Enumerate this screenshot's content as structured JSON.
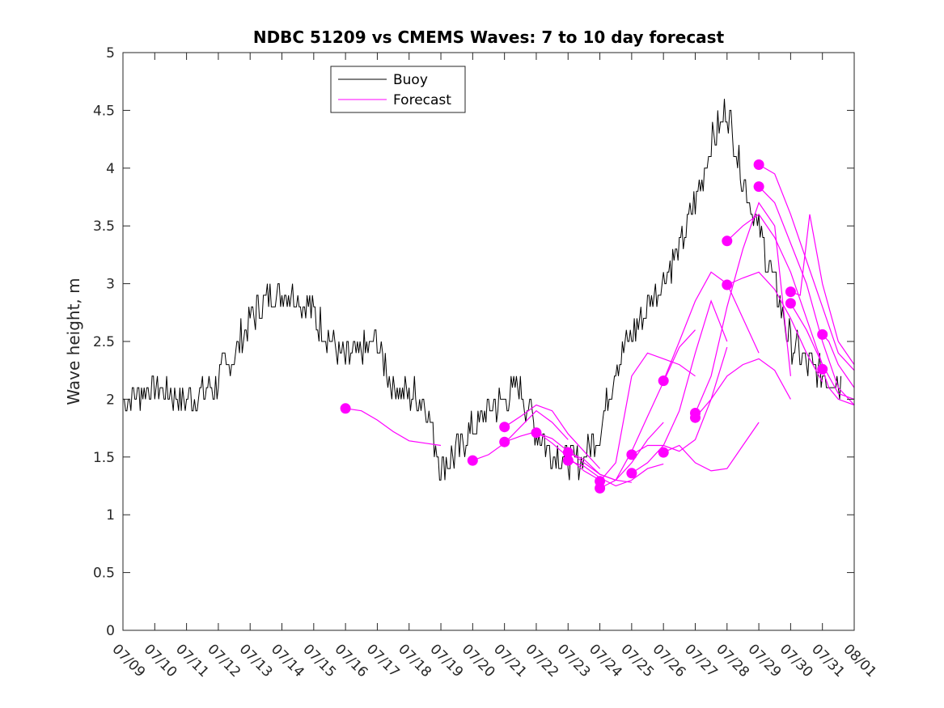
{
  "chart_data": {
    "type": "line",
    "title": "NDBC 51209 vs CMEMS Waves: 7 to 10 day forecast",
    "xlabel": "",
    "ylabel": "Wave height, m",
    "x_unit": "day",
    "xlim": [
      0,
      23
    ],
    "ylim": [
      0,
      5
    ],
    "x_tick_labels": [
      "07/09",
      "07/10",
      "07/11",
      "07/12",
      "07/13",
      "07/14",
      "07/15",
      "07/16",
      "07/17",
      "07/18",
      "07/19",
      "07/20",
      "07/21",
      "07/22",
      "07/23",
      "07/24",
      "07/25",
      "07/26",
      "07/27",
      "07/28",
      "07/29",
      "07/30",
      "07/31",
      "08/01"
    ],
    "y_ticks": [
      0,
      0.5,
      1,
      1.5,
      2,
      2.5,
      3,
      3.5,
      4,
      4.5,
      5
    ],
    "y_tick_labels": [
      "0",
      "0.5",
      "1",
      "1.5",
      "2",
      "2.5",
      "3",
      "3.5",
      "4",
      "4.5",
      "5"
    ],
    "grid": false,
    "legend": {
      "placement": "top-left",
      "entries": [
        "Buoy",
        "Forecast"
      ]
    },
    "colors": {
      "buoy": "#000000",
      "forecast": "#ff00ff"
    },
    "buoy": {
      "name": "Buoy",
      "x": [
        0,
        0.5,
        1,
        1.5,
        2,
        2.5,
        3,
        3.5,
        4,
        4.5,
        5,
        5.5,
        6,
        6.5,
        7,
        7.5,
        8,
        8.5,
        9,
        9.5,
        10,
        10.5,
        11,
        11.5,
        12,
        12.5,
        13,
        13.5,
        14,
        14.5,
        15,
        15.5,
        16,
        16.5,
        17,
        17.5,
        18,
        18.5,
        19,
        19.5,
        20,
        20.5,
        21,
        21.5,
        22,
        22.5,
        23
      ],
      "y": [
        2.0,
        2.05,
        2.1,
        2.05,
        2.0,
        2.05,
        2.15,
        2.4,
        2.7,
        2.85,
        2.95,
        2.9,
        2.75,
        2.5,
        2.35,
        2.4,
        2.5,
        2.1,
        2.05,
        2.0,
        1.4,
        1.55,
        1.75,
        1.9,
        2.0,
        2.1,
        1.75,
        1.55,
        1.45,
        1.5,
        1.7,
        2.3,
        2.55,
        2.8,
        3.05,
        3.3,
        3.7,
        4.2,
        4.5,
        3.9,
        3.45,
        3.0,
        2.5,
        2.3,
        2.2,
        2.15,
        2.1
      ]
    },
    "forecasts": [
      {
        "x": [
          7.0,
          7.5,
          8.0,
          8.5,
          9.0,
          9.5,
          10.0
        ],
        "y": [
          1.92,
          1.9,
          1.82,
          1.72,
          1.64,
          1.62,
          1.6
        ]
      },
      {
        "x": [
          11.0,
          11.5,
          12.0,
          12.5,
          13.0,
          13.5,
          14.0
        ],
        "y": [
          1.47,
          1.52,
          1.62,
          1.76,
          1.9,
          1.8,
          1.65
        ]
      },
      {
        "x": [
          12.0,
          12.5,
          13.0,
          13.5,
          14.0,
          14.5,
          15.0
        ],
        "y": [
          1.76,
          1.85,
          1.95,
          1.9,
          1.7,
          1.55,
          1.4
        ]
      },
      {
        "x": [
          12.0,
          12.5,
          13.0,
          13.5,
          14.0,
          14.5,
          15.0
        ],
        "y": [
          1.63,
          1.68,
          1.72,
          1.62,
          1.5,
          1.38,
          1.3
        ]
      },
      {
        "x": [
          13.0,
          13.5,
          14.0,
          14.5,
          15.0,
          15.5,
          16.0
        ],
        "y": [
          1.71,
          1.66,
          1.55,
          1.45,
          1.35,
          1.3,
          1.28
        ]
      },
      {
        "x": [
          14.0,
          14.5,
          15.0,
          15.5,
          16.0,
          16.5,
          17.0
        ],
        "y": [
          1.54,
          1.48,
          1.35,
          1.3,
          1.45,
          1.65,
          1.8
        ]
      },
      {
        "x": [
          14.0,
          14.5,
          15.0,
          15.5,
          16.0,
          16.5,
          17.0
        ],
        "y": [
          1.47,
          1.42,
          1.32,
          1.25,
          1.3,
          1.4,
          1.44
        ]
      },
      {
        "x": [
          15.0,
          15.5,
          16.0,
          16.5,
          17.0,
          17.5,
          18.0
        ],
        "y": [
          1.29,
          1.45,
          2.2,
          2.4,
          2.35,
          2.3,
          2.2
        ]
      },
      {
        "x": [
          15.0,
          15.5,
          16.0,
          16.5,
          17.0,
          17.5,
          18.0
        ],
        "y": [
          1.23,
          1.3,
          1.55,
          1.85,
          2.15,
          2.45,
          2.6
        ]
      },
      {
        "x": [
          16.0,
          16.5,
          17.0,
          17.5,
          18.0,
          18.5,
          19.0
        ],
        "y": [
          1.52,
          1.6,
          1.6,
          1.55,
          1.65,
          2.0,
          2.45
        ]
      },
      {
        "x": [
          16.0,
          16.5,
          17.0,
          17.5,
          18.0,
          18.5,
          19.0
        ],
        "y": [
          1.36,
          1.45,
          1.6,
          1.9,
          2.4,
          2.85,
          2.5
        ]
      },
      {
        "x": [
          17.0,
          17.5,
          18.0,
          18.5,
          19.0,
          19.5,
          20.0
        ],
        "y": [
          2.16,
          2.5,
          2.85,
          3.1,
          3.0,
          2.7,
          2.4
        ]
      },
      {
        "x": [
          17.0,
          17.5,
          18.0,
          18.5,
          19.0,
          19.5,
          20.0
        ],
        "y": [
          1.54,
          1.6,
          1.45,
          1.38,
          1.4,
          1.6,
          1.8
        ]
      },
      {
        "x": [
          18.0,
          18.5,
          19.0,
          19.5,
          20.0,
          20.5,
          21.0
        ],
        "y": [
          1.88,
          2.2,
          2.8,
          3.3,
          3.7,
          3.5,
          2.2
        ]
      },
      {
        "x": [
          18.0,
          18.5,
          19.0,
          19.5,
          20.0,
          20.5,
          21.0
        ],
        "y": [
          1.84,
          2.0,
          2.2,
          2.3,
          2.35,
          2.25,
          2.0
        ]
      },
      {
        "x": [
          19.0,
          19.5,
          20.0,
          20.5,
          21.0,
          21.5,
          22.0
        ],
        "y": [
          3.37,
          3.5,
          3.6,
          3.4,
          3.1,
          2.7,
          2.3
        ]
      },
      {
        "x": [
          19.0,
          19.5,
          20.0,
          20.5,
          21.0,
          21.5,
          22.0
        ],
        "y": [
          2.99,
          3.05,
          3.1,
          2.95,
          2.7,
          2.4,
          2.15
        ]
      },
      {
        "x": [
          20.0,
          20.5,
          21.0,
          21.5,
          22.0,
          22.5,
          23.0
        ],
        "y": [
          4.03,
          3.95,
          3.6,
          3.2,
          2.8,
          2.4,
          2.25
        ]
      },
      {
        "x": [
          20.0,
          20.5,
          21.0,
          21.5,
          22.0,
          22.5,
          23.0
        ],
        "y": [
          3.84,
          3.7,
          3.35,
          3.0,
          2.5,
          2.1,
          1.95
        ]
      },
      {
        "x": [
          21.0,
          21.3,
          21.6,
          22.0,
          22.5,
          23.0
        ],
        "y": [
          2.93,
          2.9,
          3.6,
          3.0,
          2.5,
          2.3
        ]
      },
      {
        "x": [
          21.0,
          21.5,
          22.0,
          22.5,
          23.0
        ],
        "y": [
          2.83,
          2.6,
          2.3,
          2.05,
          2.0
        ]
      },
      {
        "x": [
          22.0,
          22.2,
          22.5,
          23.0
        ],
        "y": [
          2.56,
          2.5,
          2.3,
          2.1
        ]
      },
      {
        "x": [
          22.0,
          22.2,
          22.5,
          23.0
        ],
        "y": [
          2.26,
          2.1,
          2.0,
          1.95
        ]
      }
    ],
    "initial_points": {
      "x": [
        7.0,
        11.0,
        12.0,
        12.0,
        13.0,
        14.0,
        14.0,
        15.0,
        15.0,
        16.0,
        16.0,
        17.0,
        17.0,
        18.0,
        18.0,
        19.0,
        19.0,
        20.0,
        20.0,
        21.0,
        21.0,
        22.0,
        22.0
      ],
      "y": [
        1.92,
        1.47,
        1.76,
        1.63,
        1.71,
        1.54,
        1.47,
        1.29,
        1.23,
        1.52,
        1.36,
        2.16,
        1.54,
        1.88,
        1.84,
        3.37,
        2.99,
        4.03,
        3.84,
        2.93,
        2.83,
        2.56,
        2.26
      ]
    }
  }
}
